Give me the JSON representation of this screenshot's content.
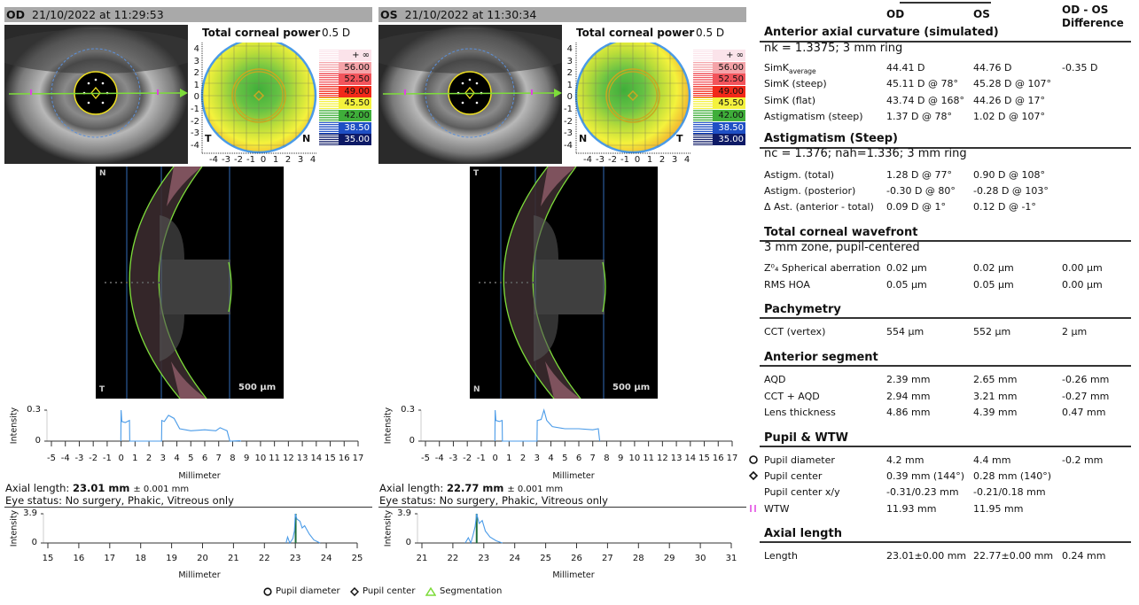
{
  "panels": [
    {
      "eye": "OD",
      "date": "21/10/2022 at 11:29:53",
      "map": {
        "title": "Total corneal power",
        "step": "0.5 D",
        "left_label": "T",
        "right_label": "N",
        "ticks": [
          "4",
          "3",
          "2",
          "1",
          "0",
          "-1",
          "-2",
          "-3",
          "-4"
        ],
        "xticks": [
          "-4",
          "-3",
          "-2",
          "-1",
          "0",
          "1",
          "2",
          "3",
          "4"
        ]
      },
      "scan": {
        "top_label": "N",
        "bottom_label": "T",
        "scale_bar": "500 µm"
      },
      "chart1": {
        "ylabel": "Intensity",
        "xlabel": "Millimeter",
        "ylim": [
          0,
          0.3
        ],
        "ytick_labels": [
          "0.3",
          "0"
        ],
        "xlim": [
          -5,
          17
        ],
        "trace": [
          [
            -0.02,
            0
          ],
          [
            0,
            0.3
          ],
          [
            0.05,
            0.19
          ],
          [
            0.3,
            0.18
          ],
          [
            0.6,
            0.2
          ],
          [
            0.62,
            0
          ],
          [
            2.9,
            0
          ],
          [
            2.92,
            0.2
          ],
          [
            3.1,
            0.19
          ],
          [
            3.4,
            0.25
          ],
          [
            3.8,
            0.22
          ],
          [
            4.2,
            0.12
          ],
          [
            5,
            0.1
          ],
          [
            6,
            0.11
          ],
          [
            6.8,
            0.1
          ],
          [
            7.1,
            0.13
          ],
          [
            7.6,
            0.1
          ],
          [
            7.8,
            0
          ],
          [
            8.5,
            0.004
          ],
          [
            8.6,
            0
          ]
        ]
      },
      "axial_label": "Axial length:",
      "axial_value": "23.01 mm",
      "axial_tol": "± 0.001 mm",
      "eye_status": "Eye status: No surgery, Phakic, Vitreous only",
      "chart2": {
        "ylabel": "Intensity",
        "xlabel": "Millimeter",
        "ylim": [
          0,
          3.9
        ],
        "ytick_labels": [
          "3.9",
          "0"
        ],
        "xlim": [
          15,
          25
        ],
        "marker": 23.01,
        "trace": [
          [
            22.7,
            0
          ],
          [
            22.75,
            0.8
          ],
          [
            22.82,
            0
          ],
          [
            22.92,
            0.6
          ],
          [
            22.97,
            1.6
          ],
          [
            23.0,
            3.9
          ],
          [
            23.05,
            3.2
          ],
          [
            23.15,
            2.9
          ],
          [
            23.22,
            2.0
          ],
          [
            23.3,
            2.3
          ],
          [
            23.45,
            1.2
          ],
          [
            23.6,
            0.4
          ],
          [
            23.8,
            0
          ]
        ]
      }
    },
    {
      "eye": "OS",
      "date": "21/10/2022 at 11:30:34",
      "map": {
        "title": "Total corneal power",
        "step": "0.5 D",
        "left_label": "N",
        "right_label": "T",
        "ticks": [
          "4",
          "3",
          "2",
          "1",
          "0",
          "-1",
          "-2",
          "-3",
          "-4"
        ],
        "xticks": [
          "-4",
          "-3",
          "-2",
          "-1",
          "0",
          "1",
          "2",
          "3",
          "4"
        ]
      },
      "scan": {
        "top_label": "T",
        "bottom_label": "N",
        "scale_bar": "500 µm"
      },
      "chart1": {
        "ylabel": "Intensity",
        "xlabel": "Millimeter",
        "ylim": [
          0,
          0.3
        ],
        "ytick_labels": [
          "0.3",
          "0"
        ],
        "xlim": [
          -5,
          17
        ],
        "trace": [
          [
            -0.02,
            0
          ],
          [
            0,
            0.3
          ],
          [
            0.05,
            0.2
          ],
          [
            0.3,
            0.19
          ],
          [
            0.5,
            0.2
          ],
          [
            0.52,
            0
          ],
          [
            3.0,
            0
          ],
          [
            3.02,
            0.2
          ],
          [
            3.3,
            0.21
          ],
          [
            3.5,
            0.3
          ],
          [
            3.7,
            0.2
          ],
          [
            4.1,
            0.14
          ],
          [
            5,
            0.12
          ],
          [
            6,
            0.12
          ],
          [
            7,
            0.11
          ],
          [
            7.4,
            0.12
          ],
          [
            7.5,
            0
          ]
        ]
      },
      "axial_label": "Axial length:",
      "axial_value": "22.77 mm",
      "axial_tol": "± 0.001 mm",
      "eye_status": "Eye status: No surgery, Phakic, Vitreous only",
      "chart2": {
        "ylabel": "Intensity",
        "xlabel": "Millimeter",
        "ylim": [
          0,
          3.9
        ],
        "ytick_labels": [
          "3.9",
          "0"
        ],
        "xlim": [
          21,
          31
        ],
        "marker": 22.77,
        "trace": [
          [
            22.4,
            0
          ],
          [
            22.5,
            0.7
          ],
          [
            22.58,
            0
          ],
          [
            22.65,
            1.0
          ],
          [
            22.72,
            2.2
          ],
          [
            22.77,
            3.9
          ],
          [
            22.85,
            2.6
          ],
          [
            22.95,
            3.0
          ],
          [
            23.05,
            1.6
          ],
          [
            23.2,
            0.8
          ],
          [
            23.4,
            0.3
          ],
          [
            23.6,
            0
          ]
        ]
      }
    }
  ],
  "scale": {
    "labels": [
      "+ ∞",
      "56.00",
      "52.50",
      "49.00",
      "45.50",
      "42.00",
      "38.50",
      "35.00"
    ],
    "colors": [
      "#fbe3ea",
      "#f4a3a8",
      "#f2545b",
      "#f2291a",
      "#f4f23c",
      "#3fae3a",
      "#1f4fc4",
      "#0e1a66"
    ],
    "text_colors": [
      "#111",
      "#111",
      "#111",
      "#111",
      "#111",
      "#111",
      "#fff",
      "#fff"
    ]
  },
  "summary": {
    "col_od": "OD",
    "col_os": "OS",
    "col_diff_1": "OD - OS",
    "col_diff_2": "Difference",
    "sections": [
      {
        "title": "Anterior axial curvature (simulated)",
        "subtitle": "nk = 1.3375; 3 mm ring",
        "rows": [
          {
            "label": "SimK",
            "label_sub": "average",
            "od": "44.41 D",
            "os": "44.76 D",
            "diff": "-0.35 D"
          },
          {
            "label": "SimK (steep)",
            "od": "45.11 D @ 78°",
            "os": "45.28 D @ 107°",
            "diff": ""
          },
          {
            "label": "SimK (flat)",
            "od": "43.74 D @ 168°",
            "os": "44.26 D @ 17°",
            "diff": ""
          },
          {
            "label": "Astigmatism (steep)",
            "od": "1.37 D @ 78°",
            "os": "1.02 D @ 107°",
            "diff": ""
          }
        ]
      },
      {
        "title": "Astigmatism (Steep)",
        "subtitle": "nc = 1.376; nah=1.336; 3 mm ring",
        "rows": [
          {
            "label": "Astigm. (total)",
            "od": "1.28 D @ 77°",
            "os": "0.90 D @ 108°",
            "diff": ""
          },
          {
            "label": "Astigm. (posterior)",
            "od": "-0.30 D @ 80°",
            "os": "-0.28 D @ 103°",
            "diff": ""
          },
          {
            "label": "Δ Ast. (anterior - total)",
            "od": "0.09 D @ 1°",
            "os": "0.12 D @ -1°",
            "diff": ""
          }
        ]
      },
      {
        "title": "Total corneal wavefront",
        "subtitle": "3 mm zone, pupil-centered",
        "rows": [
          {
            "label": "Z⁰₄ Spherical aberration",
            "od": "0.02 µm",
            "os": "0.02 µm",
            "diff": "0.00 µm"
          },
          {
            "label": "RMS HOA",
            "od": "0.05 µm",
            "os": "0.05 µm",
            "diff": "0.00 µm"
          }
        ]
      },
      {
        "title": "Pachymetry",
        "rows": [
          {
            "label": "CCT (vertex)",
            "od": "554 µm",
            "os": "552 µm",
            "diff": "2 µm"
          }
        ]
      },
      {
        "title": "Anterior segment",
        "rows": [
          {
            "label": "AQD",
            "od": "2.39 mm",
            "os": "2.65 mm",
            "diff": "-0.26 mm"
          },
          {
            "label": "CCT + AQD",
            "od": "2.94 mm",
            "os": "3.21 mm",
            "diff": "-0.27 mm"
          },
          {
            "label": "Lens thickness",
            "od": "4.86 mm",
            "os": "4.39 mm",
            "diff": "0.47 mm"
          }
        ]
      },
      {
        "title": "Pupil & WTW",
        "rows": [
          {
            "label": "Pupil diameter",
            "icon": "circle",
            "od": "4.2 mm",
            "os": "4.4 mm",
            "diff": "-0.2 mm"
          },
          {
            "label": "Pupil center",
            "icon": "diamond",
            "od": "0.39 mm (144°)",
            "os": "0.28 mm (140°)",
            "diff": ""
          },
          {
            "label": "Pupil center x/y",
            "od": "-0.31/0.23 mm",
            "os": "-0.21/0.18 mm",
            "diff": ""
          },
          {
            "label": "WTW",
            "icon": "wtw",
            "od": "11.93 mm",
            "os": "11.95 mm",
            "diff": ""
          }
        ]
      },
      {
        "title": "Axial length",
        "rows": [
          {
            "label": "Length",
            "od": "23.01±0.00 mm",
            "os": "22.77±0.00 mm",
            "diff": "0.24 mm"
          }
        ]
      }
    ]
  },
  "legend": {
    "pupil_diameter": "Pupil diameter",
    "pupil_center": "Pupil center",
    "segmentation": "Segmentation"
  },
  "colors": {
    "trace": "#4a9be8",
    "marker": "#1f6e3a",
    "segmentation": "#7ddc3a",
    "wtw": "#e040e0"
  }
}
